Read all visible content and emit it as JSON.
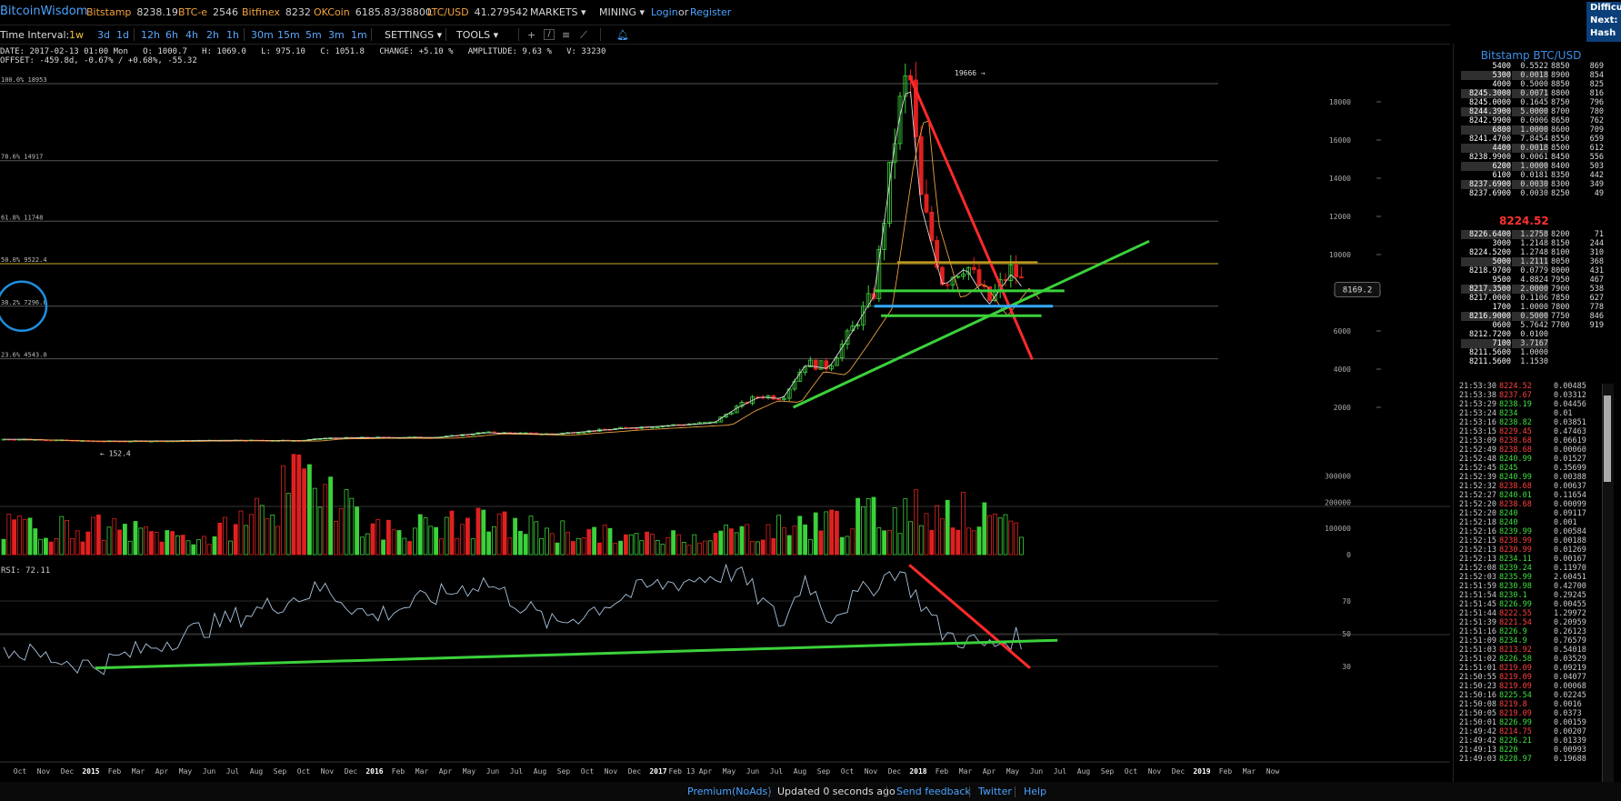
{
  "header": {
    "brand": "BitcoinWisdom",
    "tickers": [
      {
        "name": "Bitstamp",
        "value": "8238.19"
      },
      {
        "name": "BTC-e",
        "value": "2546"
      },
      {
        "name": "Bitfinex",
        "value": "8232"
      },
      {
        "name": "OKCoin",
        "value": "6185.83/38800"
      },
      {
        "name": "LTC/USD",
        "value": "41.279542"
      }
    ],
    "menus": [
      "MARKETS",
      "MINING"
    ],
    "login": "Login",
    "or": "or",
    "register": "Register",
    "difficulty_lines": [
      "Difficu",
      "Next:",
      "Hash R"
    ]
  },
  "toolbar": {
    "time_interval_label": "Time Interval:",
    "intervals_group1": [
      "1w",
      "3d",
      "1d"
    ],
    "intervals_group2": [
      "12h",
      "6h",
      "4h",
      "2h",
      "1h"
    ],
    "intervals_group3": [
      "30m",
      "15m",
      "5m",
      "3m",
      "1m"
    ],
    "active_interval": "1w",
    "settings_label": "SETTINGS",
    "tools_label": "TOOLS"
  },
  "info": {
    "line1": "DATE: 2017-02-13 01:00 Mon   O: 1000.7   H: 1069.0   L: 975.10   C: 1051.8   CHANGE: +5.10 %   AMPLITUDE: 9.63 %   V: 33230",
    "line2": "OFFSET: -459.8d, -0.67% / +0.68%, -55.32"
  },
  "chart_data": {
    "type": "candlestick",
    "title": "Bitstamp BTC/USD",
    "y_ticks": [
      2000,
      4000,
      6000,
      8000,
      10000,
      12000,
      14000,
      16000,
      18000
    ],
    "fib_levels": [
      {
        "label": "100.0% 18953",
        "value": 18953
      },
      {
        "label": "78.6% 14917",
        "value": 14917
      },
      {
        "label": "61.8% 11748",
        "value": 11748
      },
      {
        "label": "50.0% 9522.4",
        "value": 9522.4
      },
      {
        "label": "38.2% 7296.8",
        "value": 7296.8
      },
      {
        "label": "23.6% 4543.0",
        "value": 4543.0
      }
    ],
    "high_label": "19666",
    "low_label": "152.4",
    "current_price_label": "8169.2",
    "volume_ticks": [
      "300000",
      "200000",
      "100000",
      "0"
    ],
    "rsi_label": "RSI: 72.11",
    "rsi_ticks": [
      "70",
      "50",
      "30"
    ],
    "x_labels": [
      "Oct",
      "Nov",
      "Dec",
      "2015",
      "Feb",
      "Mar",
      "Apr",
      "May",
      "Jun",
      "Jul",
      "Aug",
      "Sep",
      "Oct",
      "Nov",
      "Dec",
      "2016",
      "Feb",
      "Mar",
      "Apr",
      "May",
      "Jun",
      "Jul",
      "Aug",
      "Sep",
      "Oct",
      "Nov",
      "Dec",
      "2017",
      "Feb 13",
      "Apr",
      "May",
      "Jun",
      "Jul",
      "Aug",
      "Sep",
      "Oct",
      "Nov",
      "Dec",
      "2018",
      "Feb",
      "Mar",
      "Apr",
      "May",
      "Jun",
      "Jul",
      "Aug",
      "Sep",
      "Oct",
      "Nov",
      "Dec",
      "2019",
      "Feb",
      "Mar",
      "Now"
    ],
    "price_curve": [
      [
        "2014-10",
        330
      ],
      [
        "2015-01",
        230
      ],
      [
        "2015-04",
        240
      ],
      [
        "2015-07",
        280
      ],
      [
        "2015-10",
        260
      ],
      [
        "2015-11",
        380
      ],
      [
        "2016-01",
        420
      ],
      [
        "2016-04",
        430
      ],
      [
        "2016-06",
        680
      ],
      [
        "2016-09",
        600
      ],
      [
        "2016-12",
        900
      ],
      [
        "2017-02",
        1050
      ],
      [
        "2017-04",
        1200
      ],
      [
        "2017-05",
        2000
      ],
      [
        "2017-06",
        2600
      ],
      [
        "2017-07",
        2500
      ],
      [
        "2017-08",
        4300
      ],
      [
        "2017-09",
        4100
      ],
      [
        "2017-10",
        6000
      ],
      [
        "2017-11",
        8000
      ],
      [
        "2017-12",
        17000
      ],
      [
        "2017-12-17",
        19666
      ],
      [
        "2018-01",
        13000
      ],
      [
        "2018-02",
        8500
      ],
      [
        "2018-03",
        9500
      ],
      [
        "2018-04",
        7500
      ],
      [
        "2018-05",
        9200
      ],
      [
        "2018-05-20",
        8169
      ]
    ],
    "volume_series": [
      [
        "2015",
        120000
      ],
      [
        "2015-06",
        70000
      ],
      [
        "2015-11",
        380000
      ],
      [
        "2016",
        110000
      ],
      [
        "2016-06",
        140000
      ],
      [
        "2017",
        70000
      ],
      [
        "2017-06",
        110000
      ],
      [
        "2017-12",
        190000
      ],
      [
        "2018-02",
        220000
      ],
      [
        "2018-05",
        110000
      ]
    ],
    "rsi_series": [
      [
        "2014-10",
        38
      ],
      [
        "2015-01",
        30
      ],
      [
        "2015-05",
        50
      ],
      [
        "2015-11",
        78
      ],
      [
        "2016-01",
        60
      ],
      [
        "2016-06",
        82
      ],
      [
        "2016-09",
        55
      ],
      [
        "2017-01",
        78
      ],
      [
        "2017-05",
        88
      ],
      [
        "2017-07",
        55
      ],
      [
        "2017-08",
        85
      ],
      [
        "2017-09",
        60
      ],
      [
        "2017-12",
        90
      ],
      [
        "2018-02",
        50
      ],
      [
        "2018-04",
        42
      ],
      [
        "2018-05",
        47
      ]
    ],
    "grid": false,
    "colors": {
      "up": "#3bd13b",
      "down": "#e02020",
      "trend_red": "#ff2a2a",
      "trend_green": "#3bd13b",
      "fib_line": "#555555",
      "blue_level": "#33aaff",
      "ma_orange": "#e8a040",
      "ma_white": "#d8d8d8",
      "rsi_line": "#aac4dd",
      "circle": "#1c8fe0"
    }
  },
  "orderbook": {
    "title": "Bitstamp BTC/USD",
    "last_price": "8224.52",
    "rows": [
      [
        "5400",
        "0.5522",
        "8850",
        "869"
      ],
      [
        "5300",
        "0.0018",
        "8900",
        "854"
      ],
      [
        "4000",
        "0.5000",
        "8850",
        "825"
      ],
      [
        "8245.3000",
        "0.0071",
        "8800",
        "816"
      ],
      [
        "8245.0000",
        "0.1645",
        "8750",
        "796"
      ],
      [
        "8244.3900",
        "5.0000",
        "8700",
        "780"
      ],
      [
        "8242.9900",
        "0.0006",
        "8650",
        "762"
      ],
      [
        "6800",
        "1.0000",
        "8600",
        "709"
      ],
      [
        "8241.4700",
        "7.8454",
        "8550",
        "659"
      ],
      [
        "4400",
        "0.0018",
        "8500",
        "612"
      ],
      [
        "8238.9900",
        "0.0061",
        "8450",
        "556"
      ],
      [
        "6200",
        "1.0000",
        "8400",
        "503"
      ],
      [
        "6100",
        "0.0181",
        "8350",
        "442"
      ],
      [
        "8237.6900",
        "0.0030",
        "8300",
        "349"
      ],
      [
        "8237.6900",
        "0.0030",
        "8250",
        "49"
      ],
      [
        "8226.6400",
        "1.2758",
        "8200",
        "71"
      ],
      [
        "3000",
        "1.2148",
        "8150",
        "244"
      ],
      [
        "8224.5200",
        "1.2748",
        "8100",
        "310"
      ],
      [
        "5000",
        "1.2111",
        "8050",
        "368"
      ],
      [
        "8218.9700",
        "0.0779",
        "8000",
        "431"
      ],
      [
        "9500",
        "4.8824",
        "7950",
        "467"
      ],
      [
        "8217.3500",
        "2.0000",
        "7900",
        "538"
      ],
      [
        "8217.0000",
        "0.1106",
        "7850",
        "627"
      ],
      [
        "1700",
        "1.0000",
        "7800",
        "778"
      ],
      [
        "8216.9000",
        "0.5000",
        "7750",
        "846"
      ],
      [
        "0600",
        "5.7642",
        "7700",
        "919"
      ],
      [
        "8212.7200",
        "0.0100",
        "",
        ""
      ],
      [
        "7100",
        "3.7167",
        "",
        ""
      ],
      [
        "8211.5600",
        "1.0000",
        "",
        ""
      ],
      [
        "8211.5600",
        "1.1530",
        "",
        ""
      ]
    ],
    "trades": [
      [
        "21:53:30",
        "8224.52",
        "0.00485",
        "r"
      ],
      [
        "21:53:38",
        "8237.67",
        "0.03312",
        "r"
      ],
      [
        "21:53:29",
        "8238.19",
        "0.04456",
        "g"
      ],
      [
        "21:53:24",
        "8234",
        "0.01",
        "g"
      ],
      [
        "21:53:16",
        "8238.82",
        "0.03851",
        "g"
      ],
      [
        "21:53:15",
        "8229.45",
        "0.47463",
        "r"
      ],
      [
        "21:53:09",
        "8238.68",
        "0.06619",
        "r"
      ],
      [
        "21:52:49",
        "8238.68",
        "0.00060",
        "r"
      ],
      [
        "21:52:48",
        "8240.99",
        "0.01527",
        "g"
      ],
      [
        "21:52:45",
        "8245",
        "0.35699",
        "g"
      ],
      [
        "21:52:39",
        "8240.99",
        "0.00388",
        "g"
      ],
      [
        "21:52:32",
        "8238.68",
        "0.00637",
        "r"
      ],
      [
        "21:52:27",
        "8240.01",
        "0.11654",
        "g"
      ],
      [
        "21:52:20",
        "8238.68",
        "0.00099",
        "r"
      ],
      [
        "21:52:20",
        "8240",
        "0.09117",
        "g"
      ],
      [
        "21:52:18",
        "8240",
        "0.001",
        "g"
      ],
      [
        "21:52:16",
        "8239.99",
        "0.00584",
        "g"
      ],
      [
        "21:52:15",
        "8238.99",
        "0.00188",
        "r"
      ],
      [
        "21:52:13",
        "8230.99",
        "0.01269",
        "r"
      ],
      [
        "21:52:13",
        "8234.11",
        "0.00167",
        "g"
      ],
      [
        "21:52:08",
        "8239.24",
        "0.11970",
        "g"
      ],
      [
        "21:52:03",
        "8235.99",
        "2.60451",
        "g"
      ],
      [
        "21:51:59",
        "8230.98",
        "0.42700",
        "g"
      ],
      [
        "21:51:54",
        "8230.1",
        "0.29245",
        "g"
      ],
      [
        "21:51:45",
        "8226.99",
        "0.00455",
        "g"
      ],
      [
        "21:51:44",
        "8222.55",
        "1.29972",
        "r"
      ],
      [
        "21:51:39",
        "8221.54",
        "0.20959",
        "r"
      ],
      [
        "21:51:16",
        "8226.9",
        "0.26123",
        "g"
      ],
      [
        "21:51:09",
        "8234.9",
        "0.76579",
        "g"
      ],
      [
        "21:51:03",
        "8213.92",
        "0.54018",
        "r"
      ],
      [
        "21:51:02",
        "8226.58",
        "0.03529",
        "g"
      ],
      [
        "21:51:01",
        "8219.09",
        "0.09219",
        "r"
      ],
      [
        "21:50:55",
        "8219.09",
        "0.04077",
        "r"
      ],
      [
        "21:50:23",
        "8219.09",
        "0.00068",
        "r"
      ],
      [
        "21:50:16",
        "8225.54",
        "0.02245",
        "g"
      ],
      [
        "21:50:08",
        "8219.8",
        "0.0016",
        "r"
      ],
      [
        "21:50:05",
        "8219.09",
        "0.0373",
        "r"
      ],
      [
        "21:50:01",
        "8226.99",
        "0.00159",
        "g"
      ],
      [
        "21:49:42",
        "8214.75",
        "0.00207",
        "r"
      ],
      [
        "21:49:42",
        "8226.21",
        "0.01339",
        "g"
      ],
      [
        "21:49:13",
        "8220",
        "0.00993",
        "g"
      ],
      [
        "21:49:03",
        "8228.97",
        "0.19688",
        "g"
      ]
    ]
  },
  "footer": {
    "links": [
      "Premium(NoAds)",
      "Updated 0 seconds ago",
      "Send feedback",
      "Twitter",
      "Help"
    ]
  }
}
